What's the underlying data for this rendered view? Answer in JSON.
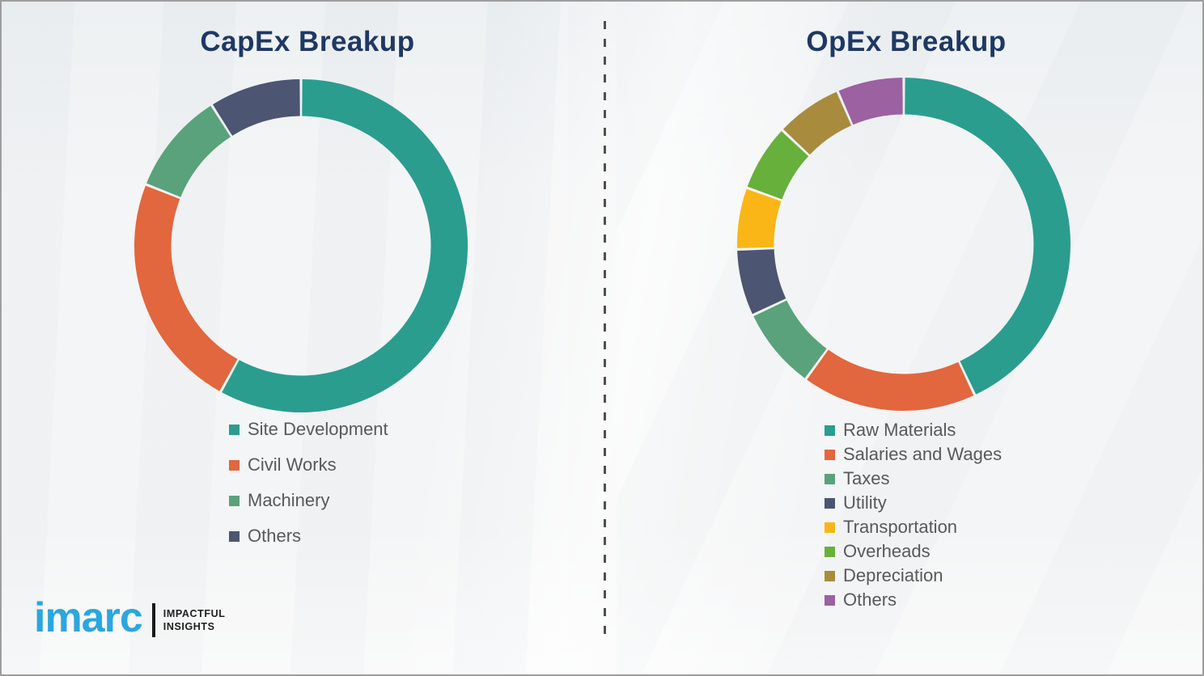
{
  "page": {
    "background_color": "#f2f3f4",
    "border_color": "#9e9e9e",
    "divider_color": "#4f4f4f",
    "title_color": "#1f3864",
    "legend_text_color": "#595959"
  },
  "chart_data": [
    {
      "type": "pie",
      "subtype": "donut",
      "title": "CapEx Breakup",
      "categories": [
        "Site Development",
        "Civil Works",
        "Machinery",
        "Others"
      ],
      "values": [
        58,
        23,
        10,
        9
      ],
      "colors": [
        "#2a9d8f",
        "#e2663e",
        "#5aa27b",
        "#4c5571"
      ],
      "value_note": "percent, estimated from arc angles; no numeric labels shown",
      "start_angle_deg": 0,
      "direction": "clockwise",
      "legend_position": "below-left",
      "hole": true
    },
    {
      "type": "pie",
      "subtype": "donut",
      "title": "OpEx Breakup",
      "categories": [
        "Raw Materials",
        "Salaries and Wages",
        "Taxes",
        "Utility",
        "Transportation",
        "Overheads",
        "Depreciation",
        "Others"
      ],
      "values": [
        43,
        17,
        8,
        6.5,
        6,
        6.5,
        6.5,
        6.5
      ],
      "colors": [
        "#2a9d8f",
        "#e2663e",
        "#5aa27b",
        "#4c5571",
        "#f9b616",
        "#68b03c",
        "#a98b3e",
        "#9c61a0"
      ],
      "value_note": "percent, estimated from arc angles; no numeric labels shown",
      "start_angle_deg": 0,
      "direction": "clockwise",
      "legend_position": "below-left",
      "hole": true
    }
  ],
  "logo": {
    "brand": "imarc",
    "brand_color": "#2aa7df",
    "tagline_line1": "IMPACTFUL",
    "tagline_line2": "INSIGHTS"
  }
}
